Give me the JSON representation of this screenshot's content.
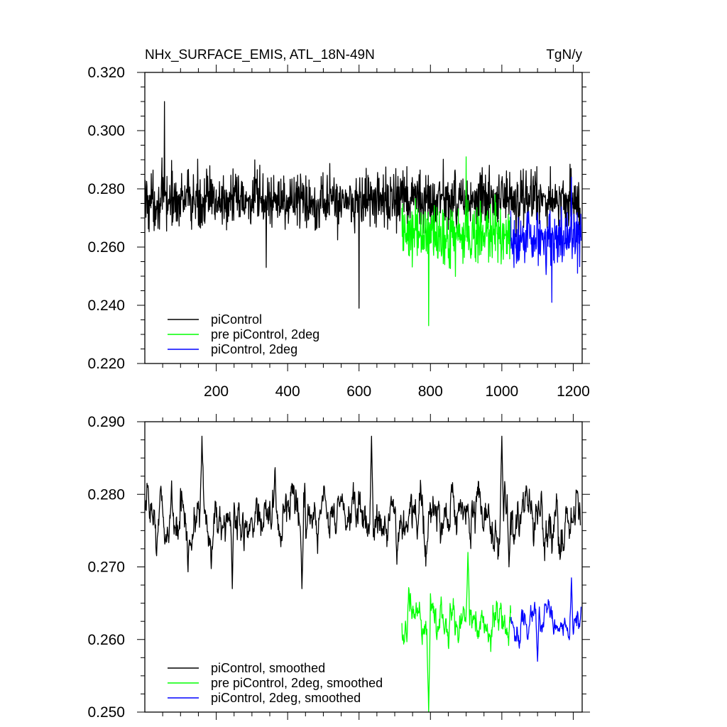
{
  "chart_data": [
    {
      "type": "line",
      "title": "NHx_SURFACE_EMIS, ATL_18N-49N",
      "units": "TgN/y",
      "xlabel": "",
      "ylabel": "",
      "xlim": [
        0,
        1225
      ],
      "ylim": [
        0.22,
        0.32
      ],
      "x_ticks": [
        "200",
        "400",
        "600",
        "800",
        "1000",
        "1200"
      ],
      "x_tick_values": [
        200,
        400,
        600,
        800,
        1000,
        1200
      ],
      "y_ticks": [
        "0.220",
        "0.240",
        "0.260",
        "0.280",
        "0.300",
        "0.320"
      ],
      "y_tick_values": [
        0.22,
        0.24,
        0.26,
        0.28,
        0.3,
        0.32
      ],
      "legend_position": "bottom-left",
      "series": [
        {
          "name": "piControl",
          "color": "#000000",
          "x_range": [
            1,
            1220
          ],
          "mean": 0.276,
          "amplitude": 0.012,
          "extremes": [
            [
              55,
              0.31
            ],
            [
              600,
              0.239
            ],
            [
              340,
              0.253
            ]
          ]
        },
        {
          "name": "pre piControl, 2deg",
          "color": "#00ff00",
          "x_range": [
            720,
            1025
          ],
          "mean": 0.264,
          "amplitude": 0.013,
          "extremes": [
            [
              795,
              0.233
            ],
            [
              900,
              0.291
            ]
          ]
        },
        {
          "name": "piControl, 2deg",
          "color": "#0000ff",
          "x_range": [
            1025,
            1222
          ],
          "mean": 0.263,
          "amplitude": 0.011,
          "extremes": [
            [
              1140,
              0.241
            ],
            [
              1195,
              0.284
            ]
          ]
        }
      ]
    },
    {
      "type": "line",
      "title": "",
      "xlabel": "",
      "ylabel": "",
      "xlim": [
        0,
        1225
      ],
      "ylim": [
        0.25,
        0.29
      ],
      "y_ticks": [
        "0.250",
        "0.260",
        "0.270",
        "0.280",
        "0.290"
      ],
      "y_tick_values": [
        0.25,
        0.26,
        0.27,
        0.28,
        0.29
      ],
      "legend_position": "bottom-left",
      "series": [
        {
          "name": "piControl, smoothed",
          "color": "#000000",
          "x_range": [
            1,
            1220
          ],
          "mean": 0.2765,
          "amplitude": 0.0042,
          "extremes": [
            [
              160,
              0.288
            ],
            [
              635,
              0.288
            ],
            [
              1000,
              0.288
            ],
            [
              245,
              0.267
            ],
            [
              440,
              0.267
            ],
            [
              1020,
              0.27
            ]
          ]
        },
        {
          "name": "pre piControl, 2deg, smoothed",
          "color": "#00ff00",
          "x_range": [
            720,
            1025
          ],
          "mean": 0.2625,
          "amplitude": 0.0035,
          "extremes": [
            [
              795,
              0.25
            ],
            [
              905,
              0.272
            ]
          ]
        },
        {
          "name": "piControl, 2deg, smoothed",
          "color": "#0000ff",
          "x_range": [
            1025,
            1222
          ],
          "mean": 0.2625,
          "amplitude": 0.0025,
          "extremes": [
            [
              1100,
              0.257
            ],
            [
              1195,
              0.2685
            ]
          ]
        }
      ]
    }
  ]
}
